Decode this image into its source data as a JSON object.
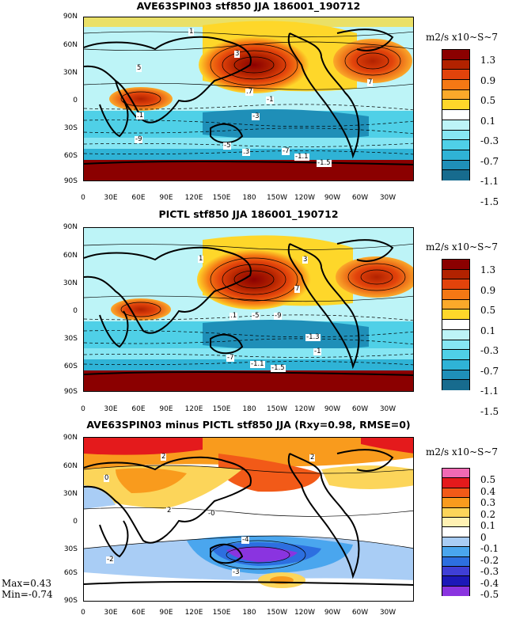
{
  "lat_labels": [
    "90N",
    "60N",
    "30N",
    "0",
    "30S",
    "60S",
    "90S"
  ],
  "lon_labels": [
    "0",
    "30E",
    "60E",
    "90E",
    "120E",
    "150E",
    "180",
    "150W",
    "120W",
    "90W",
    "60W",
    "30W"
  ],
  "panels": [
    {
      "title": "AVE63SPIN03 stf850 JJA 186001_190712",
      "units": "m2/s x10~S~7",
      "legend_colors": [
        "#8b0000",
        "#b22200",
        "#e2430b",
        "#f57814",
        "#fba92a",
        "#fed72a",
        "#ffffff",
        "#bdf4f7",
        "#86e6f3",
        "#4fd0e7",
        "#2fb3d6",
        "#1f8fb8",
        "#176b8e"
      ],
      "legend_labels": [
        "1.3",
        "0.9",
        "0.5",
        "0.1",
        "-0.3",
        "-0.7",
        "-1.1",
        "-1.5"
      ],
      "contour_labels": [
        "1",
        "5",
        "3",
        "7",
        ".7",
        ".1",
        ".3",
        "-1",
        "-3",
        "-7",
        "-9",
        "-5",
        "-1.1",
        "-1.5"
      ]
    },
    {
      "title": "PICTL stf850 JJA 186001_190712",
      "units": "m2/s x10~S~7",
      "legend_colors": [
        "#8b0000",
        "#b22200",
        "#e2430b",
        "#f57814",
        "#fba92a",
        "#fed72a",
        "#ffffff",
        "#bdf4f7",
        "#86e6f3",
        "#4fd0e7",
        "#2fb3d6",
        "#1f8fb8",
        "#176b8e"
      ],
      "legend_labels": [
        "1.3",
        "0.9",
        "0.5",
        "0.1",
        "-0.3",
        "-0.7",
        "-1.1",
        "-1.5"
      ],
      "contour_labels": [
        "1",
        "3",
        "7",
        ".1",
        "-5",
        "-9",
        "-1.3",
        "-1",
        "-7",
        "-1.1",
        "-1.5"
      ]
    },
    {
      "title": "AVE63SPIN03 minus PICTL stf850 JJA (Rxy=0.98, RMSE=0)",
      "units": "m2/s x10~S~7",
      "legend_colors": [
        "#f06ab4",
        "#e41a1c",
        "#f25a18",
        "#f99b1d",
        "#fcd55a",
        "#fff1b3",
        "#ffffff",
        "#a9cdf5",
        "#4aa6ee",
        "#2d6fe0",
        "#3f3fd6",
        "#1c18b8",
        "#8a34e0"
      ],
      "legend_labels": [
        "0.5",
        "0.4",
        "0.3",
        "0.2",
        "0.1",
        "0",
        "-0.1",
        "-0.2",
        "-0.3",
        "-0.4",
        "-0.5"
      ],
      "contour_labels": [
        "2",
        "2",
        "0",
        "2",
        "-4",
        "-2",
        "-3",
        "-0"
      ],
      "stats": {
        "max": "Max=0.43",
        "min": "Min=-0.74"
      }
    }
  ]
}
